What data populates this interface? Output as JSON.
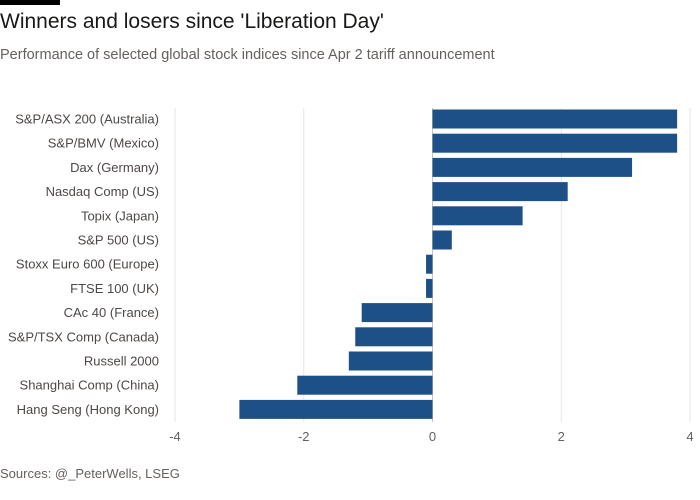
{
  "header": {
    "title": "Winners and losers since 'Liberation Day'",
    "subtitle": "Performance of selected global stock indices since Apr 2 tariff announcement"
  },
  "footer": {
    "source": "Sources: @_PeterWells, LSEG"
  },
  "colors": {
    "bar": "#1e5088",
    "grid": "#e9e6e3",
    "zero_line": "#c8c3be",
    "top_accent": "#000000"
  },
  "chart_data": {
    "type": "bar",
    "orientation": "horizontal",
    "categories": [
      "S&P/ASX 200 (Australia)",
      "S&P/BMV (Mexico)",
      "Dax (Germany)",
      "Nasdaq Comp (US)",
      "Topix (Japan)",
      "S&P 500 (US)",
      "Stoxx Euro 600 (Europe)",
      "FTSE 100 (UK)",
      "CAc 40 (France)",
      "S&P/TSX Comp (Canada)",
      "Russell 2000",
      "Shanghai Comp (China)",
      "Hang Seng (Hong Kong)"
    ],
    "values": [
      3.8,
      3.8,
      3.1,
      2.1,
      1.4,
      0.3,
      -0.1,
      -0.1,
      -1.1,
      -1.2,
      -1.3,
      -2.1,
      -3.0
    ],
    "xlim": [
      -4,
      4
    ],
    "xticks": [
      -4,
      -2,
      0,
      2,
      4
    ],
    "xtick_labels": [
      "-4",
      "-2",
      "0",
      "2",
      "4"
    ],
    "grid": true,
    "legend": "none"
  }
}
